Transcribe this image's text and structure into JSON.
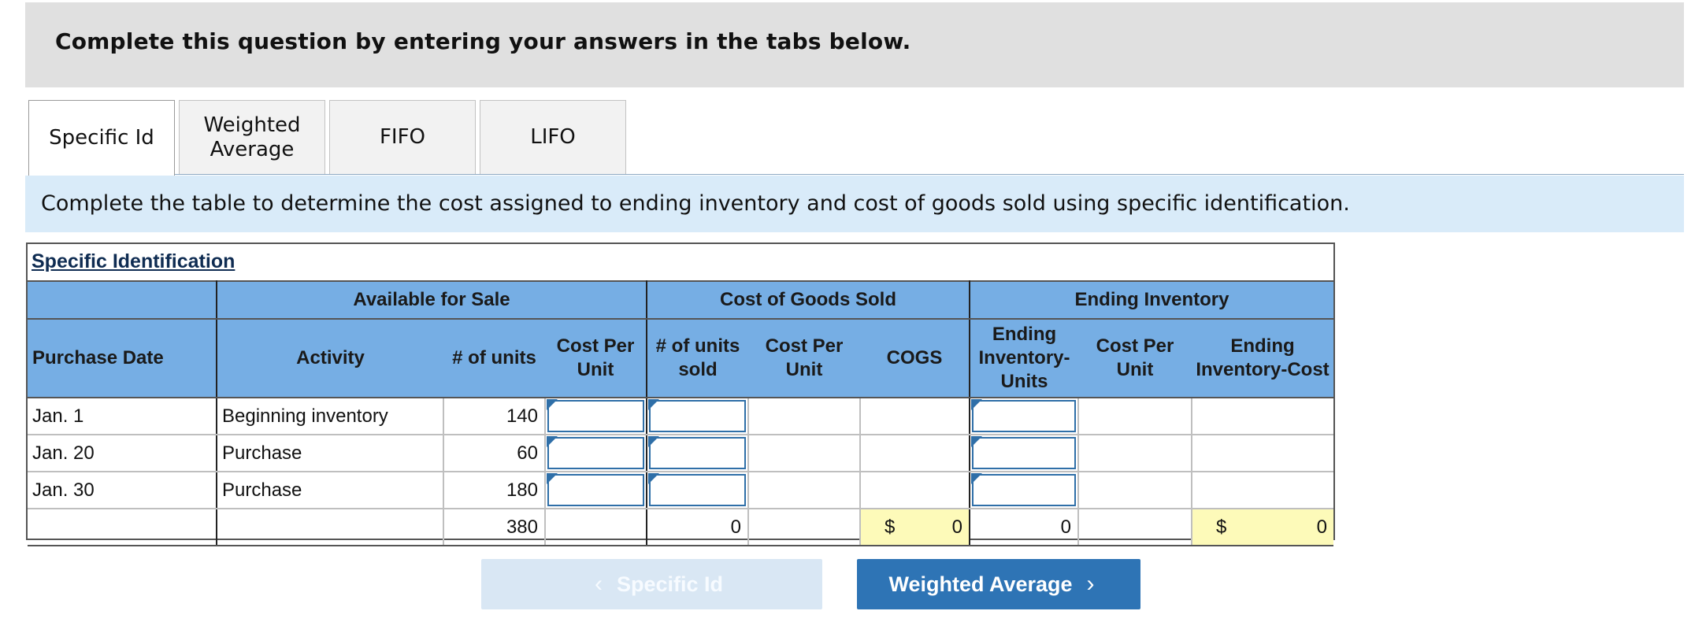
{
  "banner": {
    "text": "Complete this question by entering your answers in the tabs below."
  },
  "tabs": [
    {
      "label": "Specific Id",
      "active": true
    },
    {
      "label": "Weighted Average",
      "active": false
    },
    {
      "label": "FIFO",
      "active": false
    },
    {
      "label": "LIFO",
      "active": false
    }
  ],
  "instruction": "Complete the table to determine the cost assigned to ending inventory and cost of goods sold using specific identification.",
  "table": {
    "title": "Specific Identification",
    "groups": {
      "available": "Available for Sale",
      "cogs": "Cost of Goods Sold",
      "ending": "Ending Inventory"
    },
    "columns": {
      "purchase_date": "Purchase Date",
      "activity": "Activity",
      "units": "# of units",
      "cost_per_unit": "Cost Per Unit",
      "units_sold": "# of units sold",
      "cogs_cost_per_unit": "Cost Per Unit",
      "cogs": "COGS",
      "ending_units": "Ending Inventory-Units",
      "ending_cost_per_unit": "Cost Per Unit",
      "ending_cost": "Ending Inventory-Cost"
    },
    "rows": [
      {
        "date": "Jan. 1",
        "activity": "Beginning inventory",
        "units": "140",
        "cost_per_unit": "",
        "units_sold": "",
        "ending_units": ""
      },
      {
        "date": "Jan. 20",
        "activity": "Purchase",
        "units": "60",
        "cost_per_unit": "",
        "units_sold": "",
        "ending_units": ""
      },
      {
        "date": "Jan. 30",
        "activity": "Purchase",
        "units": "180",
        "cost_per_unit": "",
        "units_sold": "",
        "ending_units": ""
      }
    ],
    "totals": {
      "units": "380",
      "units_sold": "0",
      "cogs_symbol": "$",
      "cogs": "0",
      "ending_units": "0",
      "ending_cost_symbol": "$",
      "ending_cost": "0"
    }
  },
  "nav": {
    "prev_label": "Specific Id",
    "next_label": "Weighted Average",
    "prev_chevron": "‹",
    "next_chevron": "›"
  },
  "colors": {
    "header_blue": "#76aee4",
    "button_blue": "#2e74b5",
    "highlight_yellow": "#fdfab9",
    "instruction_bg": "#d9ebf9"
  }
}
